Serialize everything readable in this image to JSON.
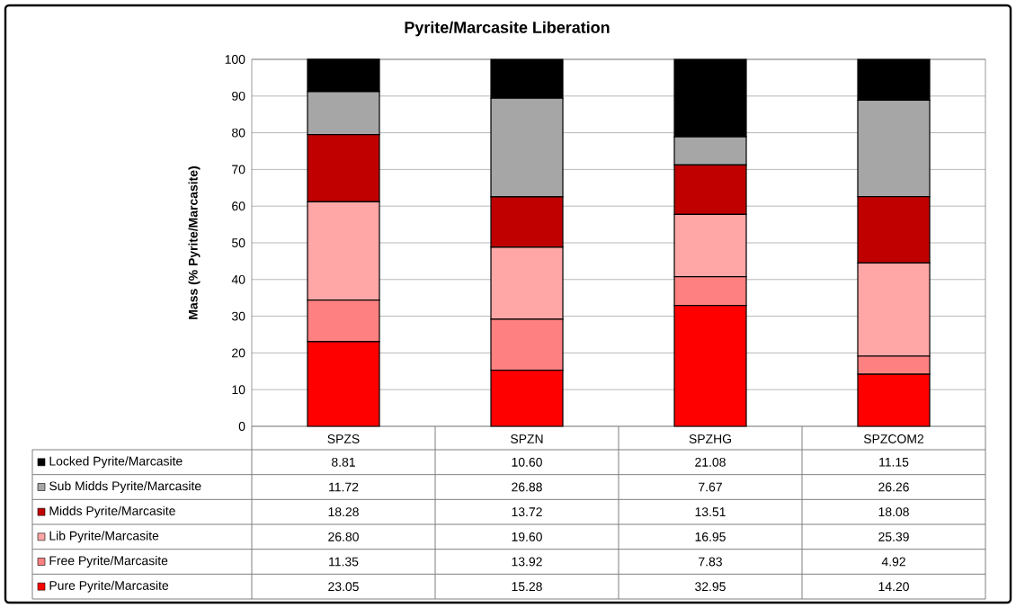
{
  "chart_data": {
    "type": "bar",
    "stacked": true,
    "title": "Pyrite/Marcasite Liberation",
    "ylabel": "Mass (% Pyrite/Marcasite)",
    "categories": [
      "SPZS",
      "SPZN",
      "SPZHG",
      "SPZCOM2"
    ],
    "ylim": [
      0,
      100
    ],
    "yticks": [
      0,
      10,
      20,
      30,
      40,
      50,
      60,
      70,
      80,
      90,
      100
    ],
    "grid": "y",
    "legend": "bottom",
    "series": [
      {
        "name": "Pure Pyrite/Marcasite",
        "color": "#ff0000",
        "values": [
          23.05,
          15.28,
          32.95,
          14.2
        ],
        "value_labels": [
          "23.05",
          "15.28",
          "32.95",
          "14.20"
        ]
      },
      {
        "name": "Free Pyrite/Marcasite",
        "color": "#ff8080",
        "values": [
          11.35,
          13.92,
          7.83,
          4.92
        ],
        "value_labels": [
          "11.35",
          "13.92",
          "7.83",
          "4.92"
        ]
      },
      {
        "name": "Lib Pyrite/Marcasite",
        "color": "#ffa6a6",
        "values": [
          26.8,
          19.6,
          16.95,
          25.39
        ],
        "value_labels": [
          "26.80",
          "19.60",
          "16.95",
          "25.39"
        ]
      },
      {
        "name": "Midds Pyrite/Marcasite",
        "color": "#c00000",
        "values": [
          18.28,
          13.72,
          13.51,
          18.08
        ],
        "value_labels": [
          "18.28",
          "13.72",
          "13.51",
          "18.08"
        ]
      },
      {
        "name": "Sub Midds Pyrite/Marcasite",
        "color": "#a6a6a6",
        "values": [
          11.72,
          26.88,
          7.67,
          26.26
        ],
        "value_labels": [
          "11.72",
          "26.88",
          "7.67",
          "26.26"
        ]
      },
      {
        "name": "Locked Pyrite/Marcasite",
        "color": "#000000",
        "values": [
          8.81,
          10.6,
          21.08,
          11.15
        ],
        "value_labels": [
          "8.81",
          "10.60",
          "21.08",
          "11.15"
        ]
      }
    ]
  }
}
